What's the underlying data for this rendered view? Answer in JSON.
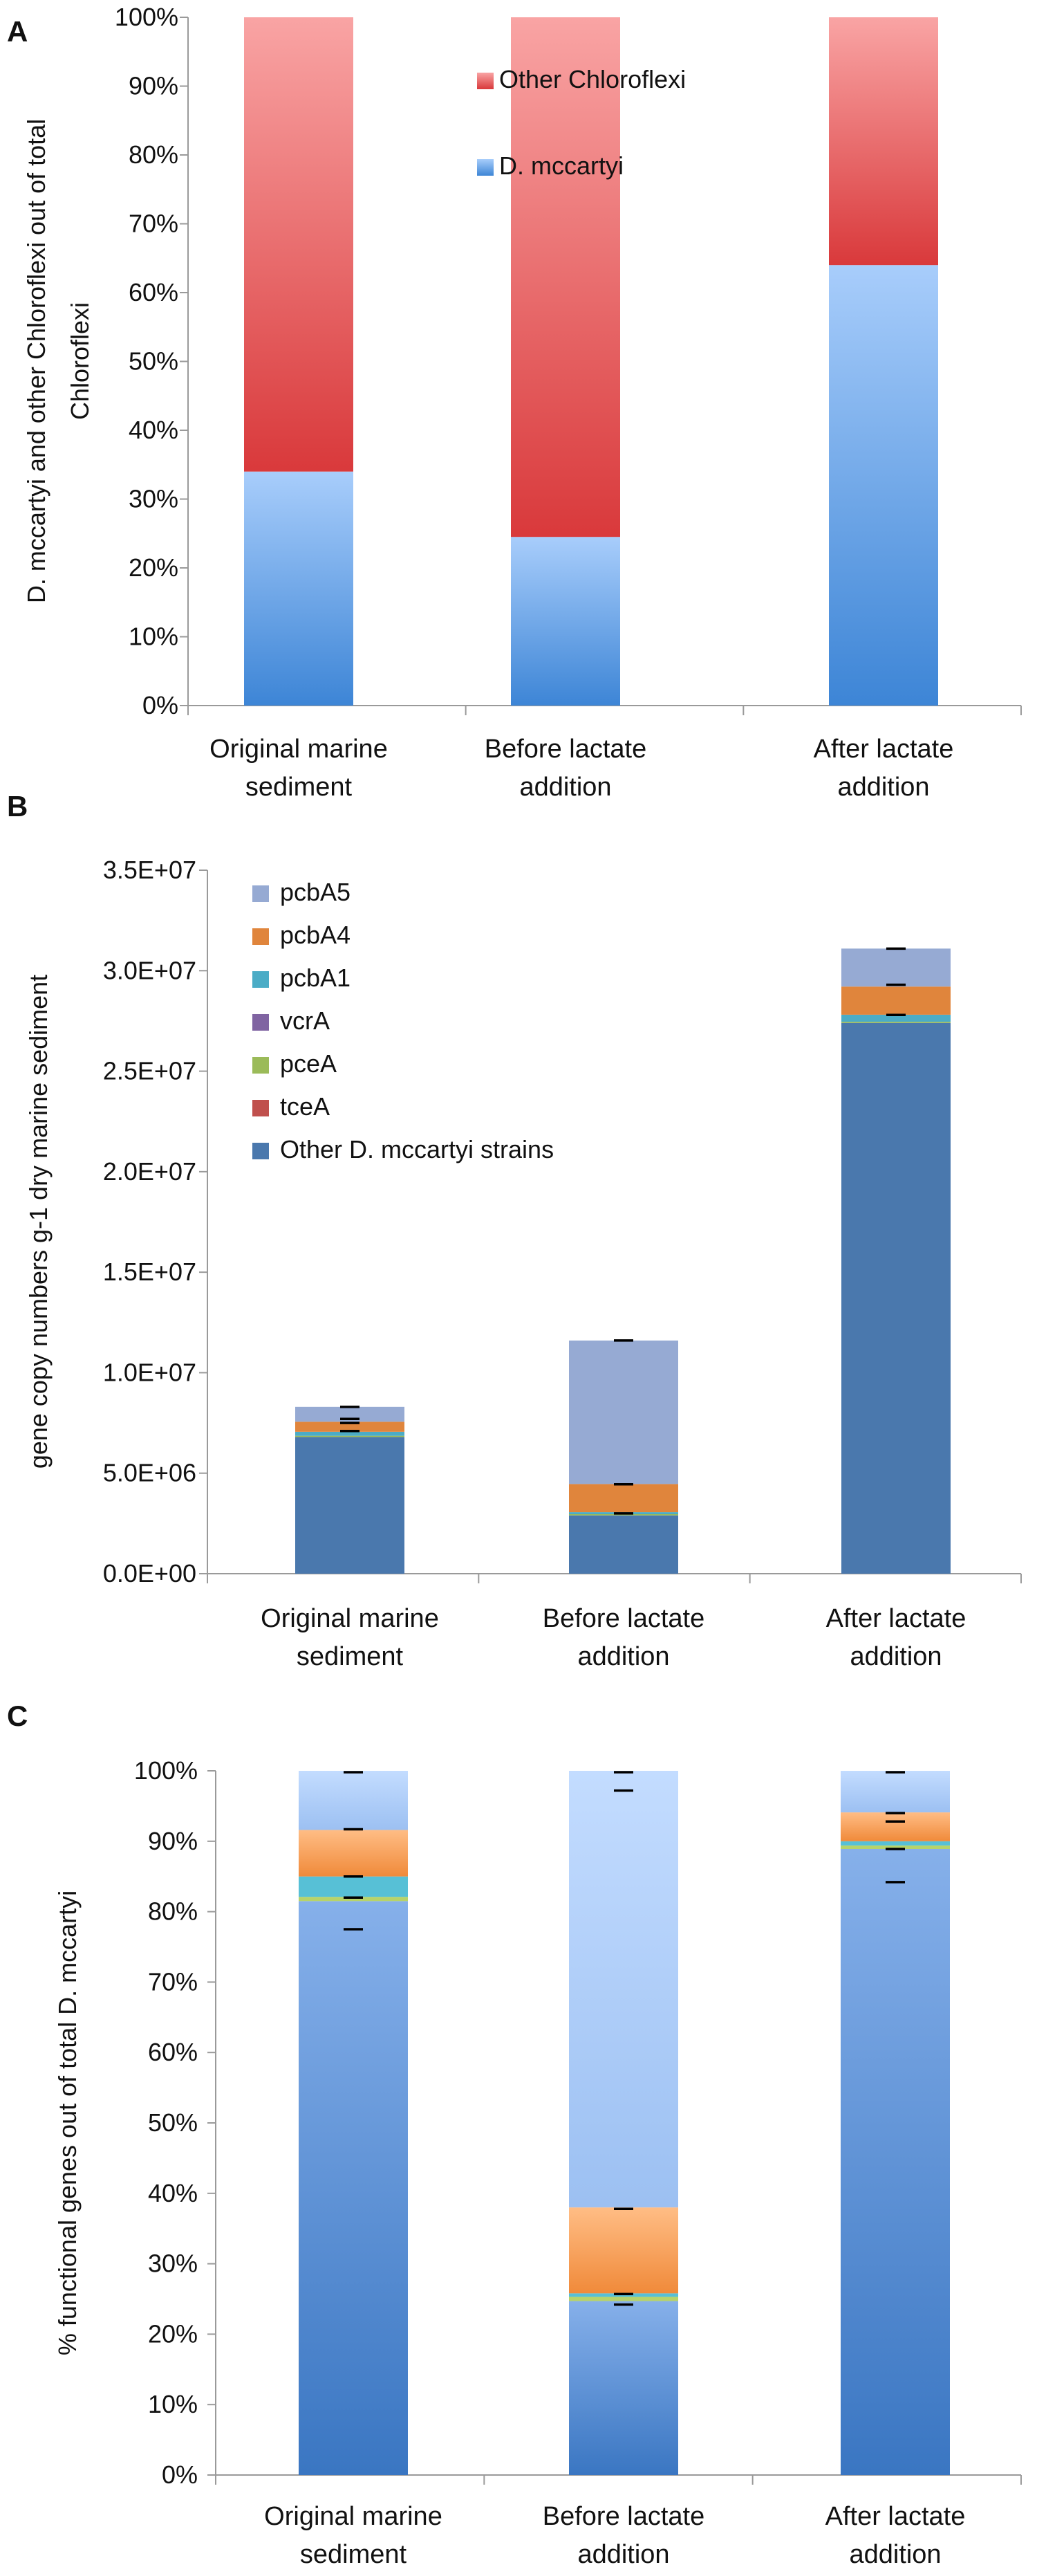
{
  "chart_data": [
    {
      "panel": "A",
      "type": "bar",
      "stacked": true,
      "categories": [
        [
          "Original marine",
          "sediment"
        ],
        [
          "Before lactate",
          "addition"
        ],
        [
          "After lactate",
          "addition"
        ]
      ],
      "series": [
        {
          "name": "D. mccartyi",
          "values": [
            34,
            24.5,
            64
          ],
          "color_top": "#a8cdfb",
          "color_bottom": "#3d85d6"
        },
        {
          "name": "Other Chloroflexi",
          "values": [
            66,
            75.5,
            36
          ],
          "color_top": "#f9a4a4",
          "color_bottom": "#d9393b"
        }
      ],
      "legend": [
        "Other Chloroflexi",
        "D. mccartyi"
      ],
      "ylabel_lines": [
        "D. mccartyi and  other Chloroflexi out of total",
        "Chloroflexi"
      ],
      "ylim": [
        0,
        100
      ],
      "yticks": [
        "0%",
        "10%",
        "20%",
        "30%",
        "40%",
        "50%",
        "60%",
        "70%",
        "80%",
        "90%",
        "100%"
      ]
    },
    {
      "panel": "B",
      "type": "bar",
      "stacked": true,
      "categories": [
        [
          "Original marine",
          "sediment"
        ],
        [
          "Before lactate",
          "addition"
        ],
        [
          "After lactate",
          "addition"
        ]
      ],
      "series": [
        {
          "name": "Other D. mccartyi strains",
          "values": [
            6800000,
            2900000,
            27400000
          ],
          "color": "#4a78ad"
        },
        {
          "name": "tceA",
          "values": [
            0,
            0,
            0
          ],
          "color": "#c0504d"
        },
        {
          "name": "pceA",
          "values": [
            60000,
            60000,
            60000
          ],
          "color": "#9bbb59"
        },
        {
          "name": "vcrA",
          "values": [
            0,
            0,
            0
          ],
          "color": "#8064a2"
        },
        {
          "name": "pcbA1",
          "values": [
            200000,
            100000,
            350000
          ],
          "color": "#4bacc6"
        },
        {
          "name": "pcbA4",
          "values": [
            500000,
            1400000,
            1400000
          ],
          "color": "#e0853c"
        },
        {
          "name": "pcbA5",
          "values": [
            740000,
            7140000,
            1890000
          ],
          "color": "#96aad3"
        }
      ],
      "errors": [
        [
          7100000,
          7500000,
          7700000,
          8300000
        ],
        [
          3000000,
          4450000,
          11600000
        ],
        [
          27800000,
          29300000,
          31100000
        ]
      ],
      "legend": [
        "pcbA5",
        "pcbA4",
        "pcbA1",
        "vcrA",
        "pceA",
        "tceA",
        "Other D. mccartyi strains"
      ],
      "ylabel": "gene copy numbers g-1 dry marine sediment",
      "ylim": [
        0,
        35000000
      ],
      "yticks": [
        "0.0E+00",
        "5.0E+06",
        "1.0E+07",
        "1.5E+07",
        "2.0E+07",
        "2.5E+07",
        "3.0E+07",
        "3.5E+07"
      ]
    },
    {
      "panel": "C",
      "type": "bar",
      "stacked": true,
      "categories": [
        [
          "Original marine",
          "sediment"
        ],
        [
          "Before lactate",
          "addition"
        ],
        [
          "After lactate",
          "addition"
        ]
      ],
      "series": [
        {
          "name": "Other D. mccartyi strains",
          "values": [
            81.5,
            24.7,
            88.9
          ],
          "color_top": "#86b0ea",
          "color_bottom": "#3a76c2"
        },
        {
          "name": "tceA",
          "values": [
            0,
            0,
            0
          ],
          "color": "#d05a5a"
        },
        {
          "name": "pceA",
          "values": [
            0.6,
            0.6,
            0.5
          ],
          "color": "#b7d36a"
        },
        {
          "name": "vcrA",
          "values": [
            0,
            0,
            0
          ],
          "color": "#8b6cb0"
        },
        {
          "name": "pcbA1",
          "values": [
            2.9,
            0.5,
            0.6
          ],
          "color": "#57c0d6"
        },
        {
          "name": "pcbA4",
          "values": [
            6.6,
            12.2,
            4.1
          ],
          "color_top": "#ffbd85",
          "color_bottom": "#f08a3a"
        },
        {
          "name": "pcbA5",
          "values": [
            8.4,
            62.0,
            5.9
          ],
          "color_top": "#c3dcff",
          "color_bottom": "#9cc0f2"
        }
      ],
      "errors": [
        [
          77.5,
          82,
          85,
          91.7,
          99.8
        ],
        [
          24.2,
          25.7,
          37.8,
          97.2,
          99.8
        ],
        [
          84.2,
          88.9,
          92.8,
          94,
          99.8
        ]
      ],
      "ylabel": "% functional genes out of total D. mccartyi",
      "ylim": [
        0,
        100
      ],
      "yticks": [
        "0%",
        "10%",
        "20%",
        "30%",
        "40%",
        "50%",
        "60%",
        "70%",
        "80%",
        "90%",
        "100%"
      ]
    }
  ]
}
